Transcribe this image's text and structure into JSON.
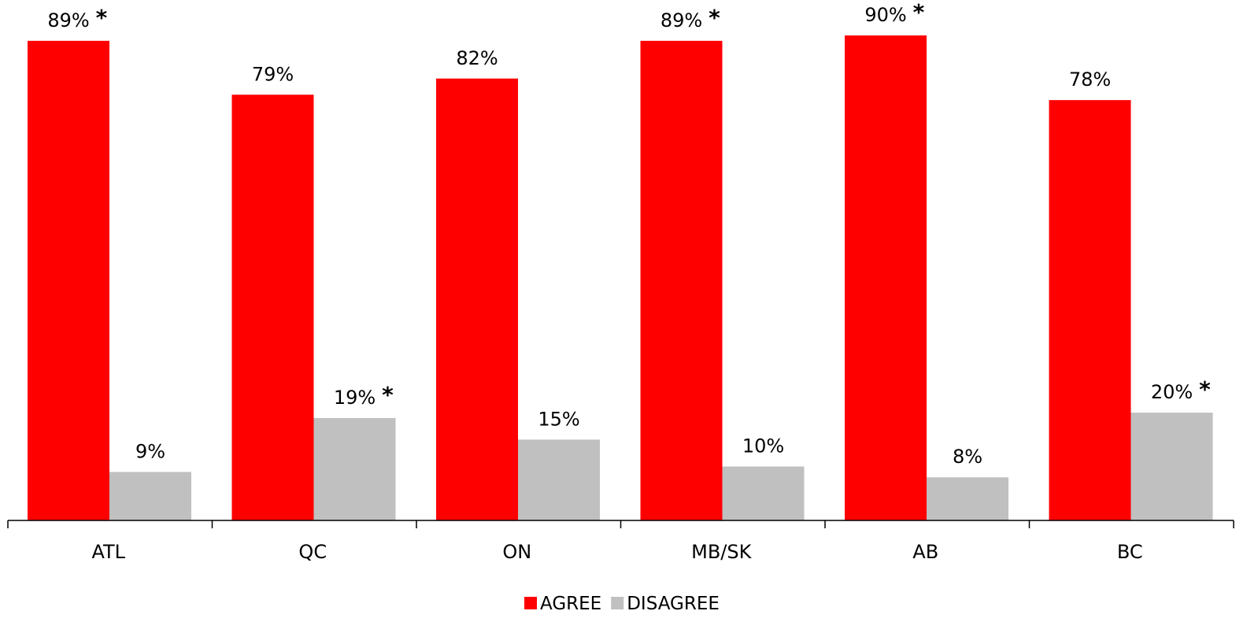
{
  "chart_data": {
    "type": "bar",
    "categories": [
      "ATL",
      "QC",
      "ON",
      "MB/SK",
      "AB",
      "BC"
    ],
    "series": [
      {
        "name": "AGREE",
        "color": "#ff0000",
        "values": [
          89,
          79,
          82,
          89,
          90,
          78
        ],
        "labels": [
          "89%",
          "79%",
          "82%",
          "89%",
          "90%",
          "78%"
        ],
        "marked": [
          true,
          false,
          false,
          true,
          true,
          false
        ]
      },
      {
        "name": "DISAGREE",
        "color": "#c0c0c0",
        "values": [
          9,
          19,
          15,
          10,
          8,
          20
        ],
        "labels": [
          "9%",
          "19%",
          "15%",
          "10%",
          "8%",
          "20%"
        ],
        "marked": [
          false,
          true,
          false,
          false,
          false,
          true
        ]
      }
    ],
    "marker_symbol": "*",
    "ylim": [
      0,
      90
    ],
    "grid": false,
    "legend_position": "bottom-center",
    "title": "",
    "xlabel": "",
    "ylabel": ""
  }
}
